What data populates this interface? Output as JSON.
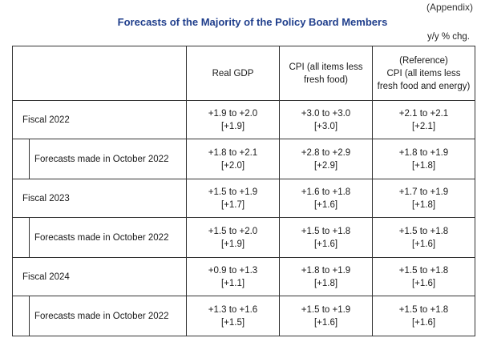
{
  "appendix": "(Appendix)",
  "title": "Forecasts of the Majority of the Policy Board Members",
  "unit": "y/y % chg.",
  "headers": {
    "gdp": "Real GDP",
    "cpi_line1": "CPI (all items less",
    "cpi_line2": "fresh food)",
    "ref_line1": "(Reference)",
    "ref_line2": "CPI (all items less",
    "ref_line3": "fresh food and energy)"
  },
  "rows": [
    {
      "label": "Fiscal 2022",
      "gdp": {
        "range": "+1.9 to +2.0",
        "median": "[+1.9]"
      },
      "cpi": {
        "range": "+3.0 to +3.0",
        "median": "[+3.0]"
      },
      "ref": {
        "range": "+2.1 to +2.1",
        "median": "[+2.1]"
      },
      "sub": {
        "label": "Forecasts made in October 2022",
        "gdp": {
          "range": "+1.8 to +2.1",
          "median": "[+2.0]"
        },
        "cpi": {
          "range": "+2.8 to +2.9",
          "median": "[+2.9]"
        },
        "ref": {
          "range": "+1.8 to +1.9",
          "median": "[+1.8]"
        }
      }
    },
    {
      "label": "Fiscal 2023",
      "gdp": {
        "range": "+1.5 to +1.9",
        "median": "[+1.7]"
      },
      "cpi": {
        "range": "+1.6 to +1.8",
        "median": "[+1.6]"
      },
      "ref": {
        "range": "+1.7 to +1.9",
        "median": "[+1.8]"
      },
      "sub": {
        "label": "Forecasts made in October 2022",
        "gdp": {
          "range": "+1.5 to +2.0",
          "median": "[+1.9]"
        },
        "cpi": {
          "range": "+1.5 to +1.8",
          "median": "[+1.6]"
        },
        "ref": {
          "range": "+1.5 to +1.8",
          "median": "[+1.6]"
        }
      }
    },
    {
      "label": "Fiscal 2024",
      "gdp": {
        "range": "+0.9 to +1.3",
        "median": "[+1.1]"
      },
      "cpi": {
        "range": "+1.8 to +1.9",
        "median": "[+1.8]"
      },
      "ref": {
        "range": "+1.5 to +1.8",
        "median": "[+1.6]"
      },
      "sub": {
        "label": "Forecasts made in October 2022",
        "gdp": {
          "range": "+1.3 to +1.6",
          "median": "[+1.5]"
        },
        "cpi": {
          "range": "+1.5 to +1.9",
          "median": "[+1.6]"
        },
        "ref": {
          "range": "+1.5 to +1.8",
          "median": "[+1.6]"
        }
      }
    }
  ]
}
